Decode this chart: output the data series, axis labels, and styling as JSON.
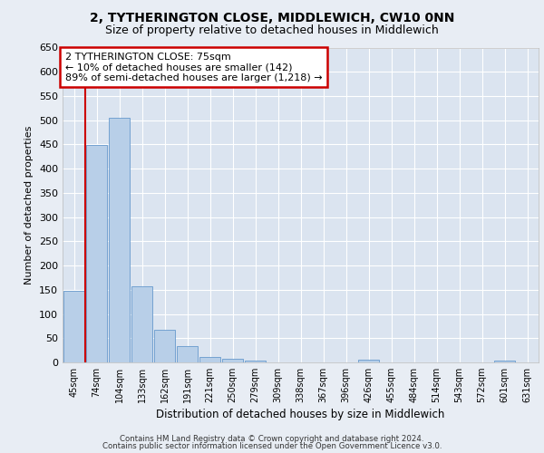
{
  "title": "2, TYTHERINGTON CLOSE, MIDDLEWICH, CW10 0NN",
  "subtitle": "Size of property relative to detached houses in Middlewich",
  "xlabel": "Distribution of detached houses by size in Middlewich",
  "ylabel": "Number of detached properties",
  "categories": [
    "45sqm",
    "74sqm",
    "104sqm",
    "133sqm",
    "162sqm",
    "191sqm",
    "221sqm",
    "250sqm",
    "279sqm",
    "309sqm",
    "338sqm",
    "367sqm",
    "396sqm",
    "426sqm",
    "455sqm",
    "484sqm",
    "514sqm",
    "543sqm",
    "572sqm",
    "601sqm",
    "631sqm"
  ],
  "values": [
    147,
    449,
    505,
    158,
    68,
    33,
    12,
    7,
    4,
    0,
    0,
    0,
    0,
    5,
    0,
    0,
    0,
    0,
    0,
    4,
    0
  ],
  "bar_color": "#b8cfe8",
  "bar_edge_color": "#6699cc",
  "vline_color": "#cc0000",
  "vline_pos": 0.5,
  "annotation_box_text": "2 TYTHERINGTON CLOSE: 75sqm\n← 10% of detached houses are smaller (142)\n89% of semi-detached houses are larger (1,218) →",
  "ylim": [
    0,
    650
  ],
  "yticks": [
    0,
    50,
    100,
    150,
    200,
    250,
    300,
    350,
    400,
    450,
    500,
    550,
    600,
    650
  ],
  "background_color": "#e8edf4",
  "plot_background": "#dbe4f0",
  "grid_color": "#ffffff",
  "title_fontsize": 10,
  "subtitle_fontsize": 9,
  "footer_line1": "Contains HM Land Registry data © Crown copyright and database right 2024.",
  "footer_line2": "Contains public sector information licensed under the Open Government Licence v3.0."
}
